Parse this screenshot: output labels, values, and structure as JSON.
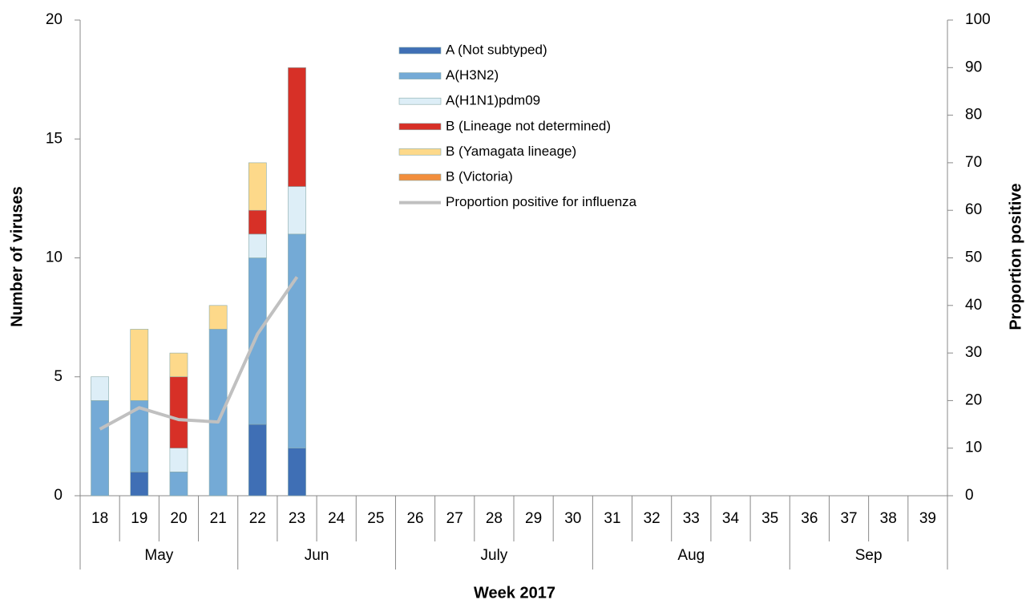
{
  "chart_data": {
    "type": "bar",
    "x_title": "Week 2017",
    "y_title": "Number of viruses",
    "y2_title": "Proportion positive",
    "categories": [
      "18",
      "19",
      "20",
      "21",
      "22",
      "23",
      "24",
      "25",
      "26",
      "27",
      "28",
      "29",
      "30",
      "31",
      "32",
      "33",
      "34",
      "35",
      "36",
      "37",
      "38",
      "39"
    ],
    "category_groups": [
      "May",
      "May",
      "May",
      "May",
      "Jun",
      "Jun",
      "Jun",
      "Jun",
      "July",
      "July",
      "July",
      "July",
      "July",
      "Aug",
      "Aug",
      "Aug",
      "Aug",
      "Aug",
      "Sep",
      "Sep",
      "Sep",
      "Sep"
    ],
    "stacked": true,
    "series": [
      {
        "name": "A (Not subtyped)",
        "color": "#3f6fb5",
        "values": [
          0,
          1,
          0,
          0,
          3,
          2,
          null,
          null,
          null,
          null,
          null,
          null,
          null,
          null,
          null,
          null,
          null,
          null,
          null,
          null,
          null,
          null
        ]
      },
      {
        "name": "A(H3N2)",
        "color": "#74aad6",
        "values": [
          4,
          3,
          1,
          7,
          7,
          9,
          null,
          null,
          null,
          null,
          null,
          null,
          null,
          null,
          null,
          null,
          null,
          null,
          null,
          null,
          null,
          null
        ]
      },
      {
        "name": "A(H1N1)pdm09",
        "color": "#ddeef7",
        "values": [
          1,
          0,
          1,
          0,
          1,
          2,
          null,
          null,
          null,
          null,
          null,
          null,
          null,
          null,
          null,
          null,
          null,
          null,
          null,
          null,
          null,
          null
        ]
      },
      {
        "name": "B (Lineage not determined)",
        "color": "#d73027",
        "values": [
          0,
          0,
          3,
          0,
          1,
          5,
          null,
          null,
          null,
          null,
          null,
          null,
          null,
          null,
          null,
          null,
          null,
          null,
          null,
          null,
          null,
          null
        ]
      },
      {
        "name": "B (Yamagata lineage)",
        "color": "#fdd98a",
        "values": [
          0,
          3,
          1,
          1,
          2,
          0,
          null,
          null,
          null,
          null,
          null,
          null,
          null,
          null,
          null,
          null,
          null,
          null,
          null,
          null,
          null,
          null
        ]
      },
      {
        "name": "B (Victoria)",
        "color": "#f28e3c",
        "values": [
          0,
          0,
          0,
          0,
          0,
          0,
          null,
          null,
          null,
          null,
          null,
          null,
          null,
          null,
          null,
          null,
          null,
          null,
          null,
          null,
          null,
          null
        ]
      },
      {
        "name": "Proportion positive for influenza",
        "type": "line",
        "axis": "y2",
        "color": "#c0c0c0",
        "values": [
          14,
          18.5,
          16,
          15.5,
          34,
          46,
          null,
          null,
          null,
          null,
          null,
          null,
          null,
          null,
          null,
          null,
          null,
          null,
          null,
          null,
          null,
          null
        ]
      }
    ],
    "ylim": [
      0,
      20
    ],
    "yticks": [
      0,
      5,
      10,
      15,
      20
    ],
    "y2lim": [
      0,
      100
    ],
    "y2ticks": [
      0,
      10,
      20,
      30,
      40,
      50,
      60,
      70,
      80,
      90,
      100
    ]
  }
}
